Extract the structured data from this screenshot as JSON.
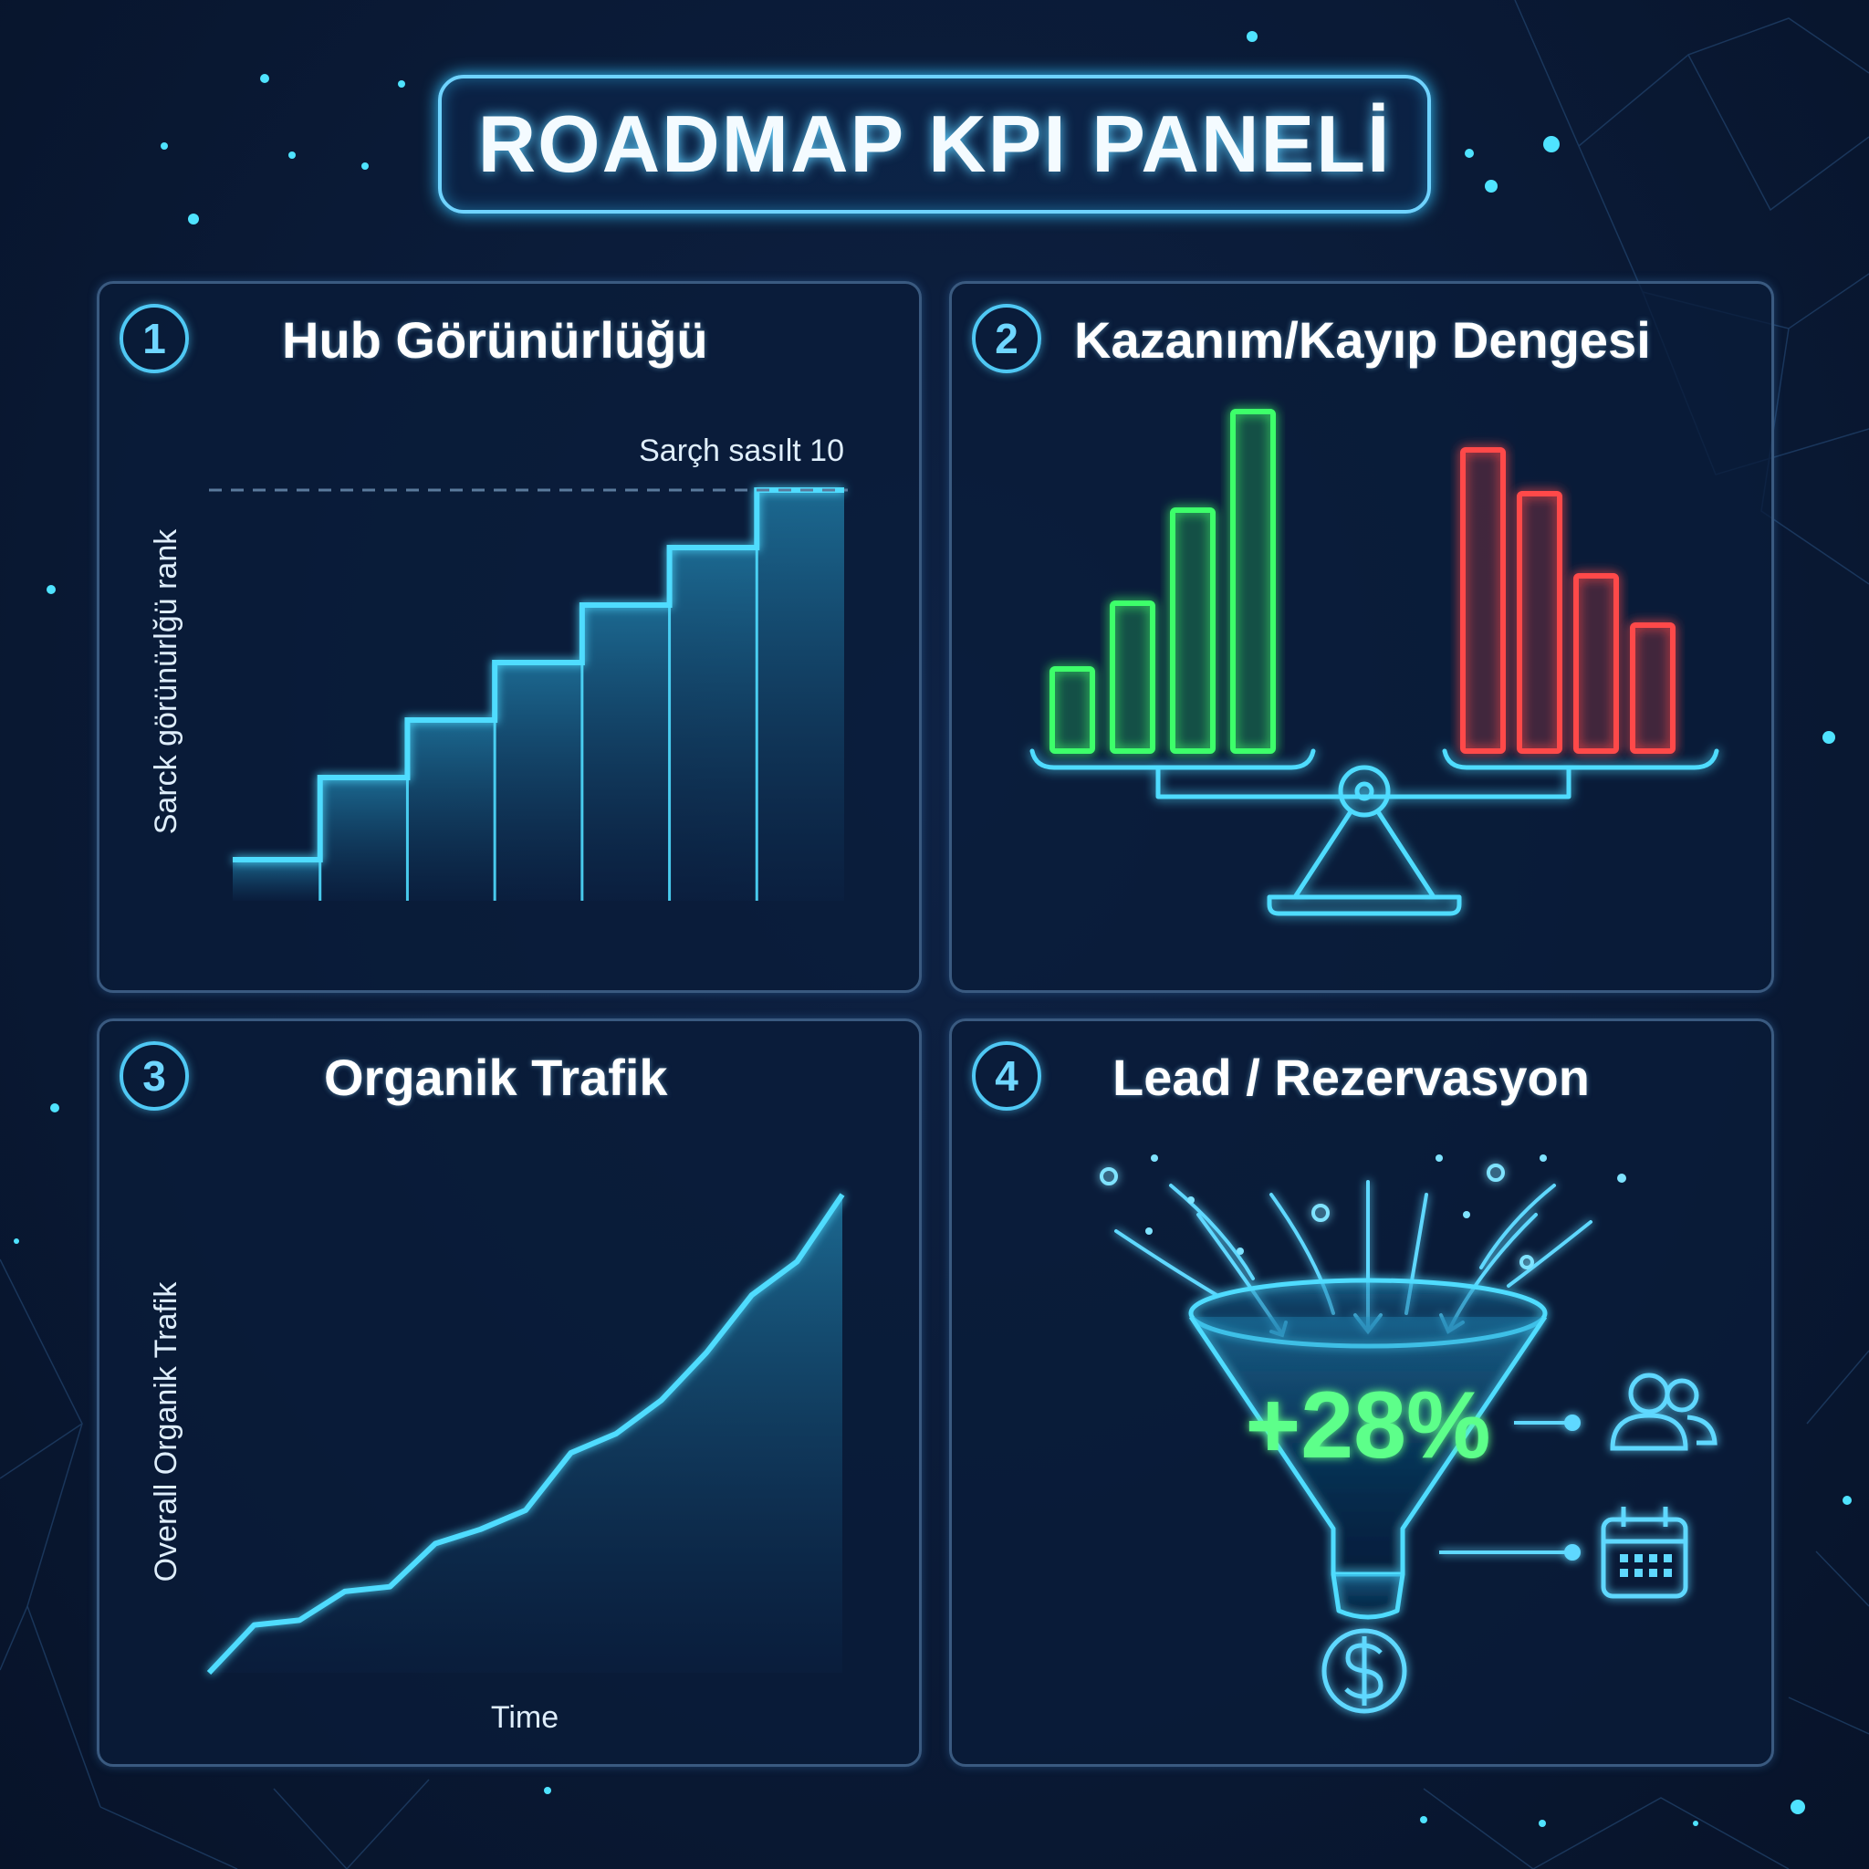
{
  "title": "ROADMAP KPI PANELİ",
  "colors": {
    "background": "#0a1a36",
    "accent": "#3fd8ff",
    "gain": "#3dff6a",
    "loss": "#ff4a4a",
    "percent": "#5dff8a"
  },
  "panels": [
    {
      "number": "1",
      "title": "Hub Görünürlüğü"
    },
    {
      "number": "2",
      "title": "Kazanım/Kayıp Dengesi"
    },
    {
      "number": "3",
      "title": "Organik Trafik"
    },
    {
      "number": "4",
      "title": "Lead / Rezervasyon"
    }
  ],
  "chart_data": [
    {
      "type": "area",
      "step": true,
      "ylabel": "Sarck görünürlğü rank",
      "xlabel": "",
      "reference_line": {
        "label": "Sarçh sasılt 10",
        "value": 10,
        "style": "dashed"
      },
      "ylim": [
        0,
        11
      ],
      "values": [
        1,
        3,
        4.4,
        5.8,
        7.2,
        8.6,
        10
      ]
    },
    {
      "type": "bar",
      "series": [
        {
          "color": "gain",
          "values": [
            1.5,
            2.7,
            4.4,
            6.2
          ]
        },
        {
          "color": "loss",
          "values": [
            5.5,
            4.7,
            3.2,
            2.3
          ]
        }
      ],
      "ylim": [
        0,
        7
      ],
      "icon": "balance-scale-icon"
    },
    {
      "type": "area",
      "xlabel": "Time",
      "ylabel": "Overall Organik Trafik",
      "ylim": [
        0,
        100
      ],
      "values": [
        0,
        10,
        11,
        17,
        18,
        27,
        30,
        34,
        46,
        50,
        57,
        67,
        79,
        86,
        100
      ]
    },
    {
      "type": "funnel",
      "value": "+28%",
      "icons": [
        "users-icon",
        "calendar-icon",
        "dollar-icon"
      ]
    }
  ]
}
